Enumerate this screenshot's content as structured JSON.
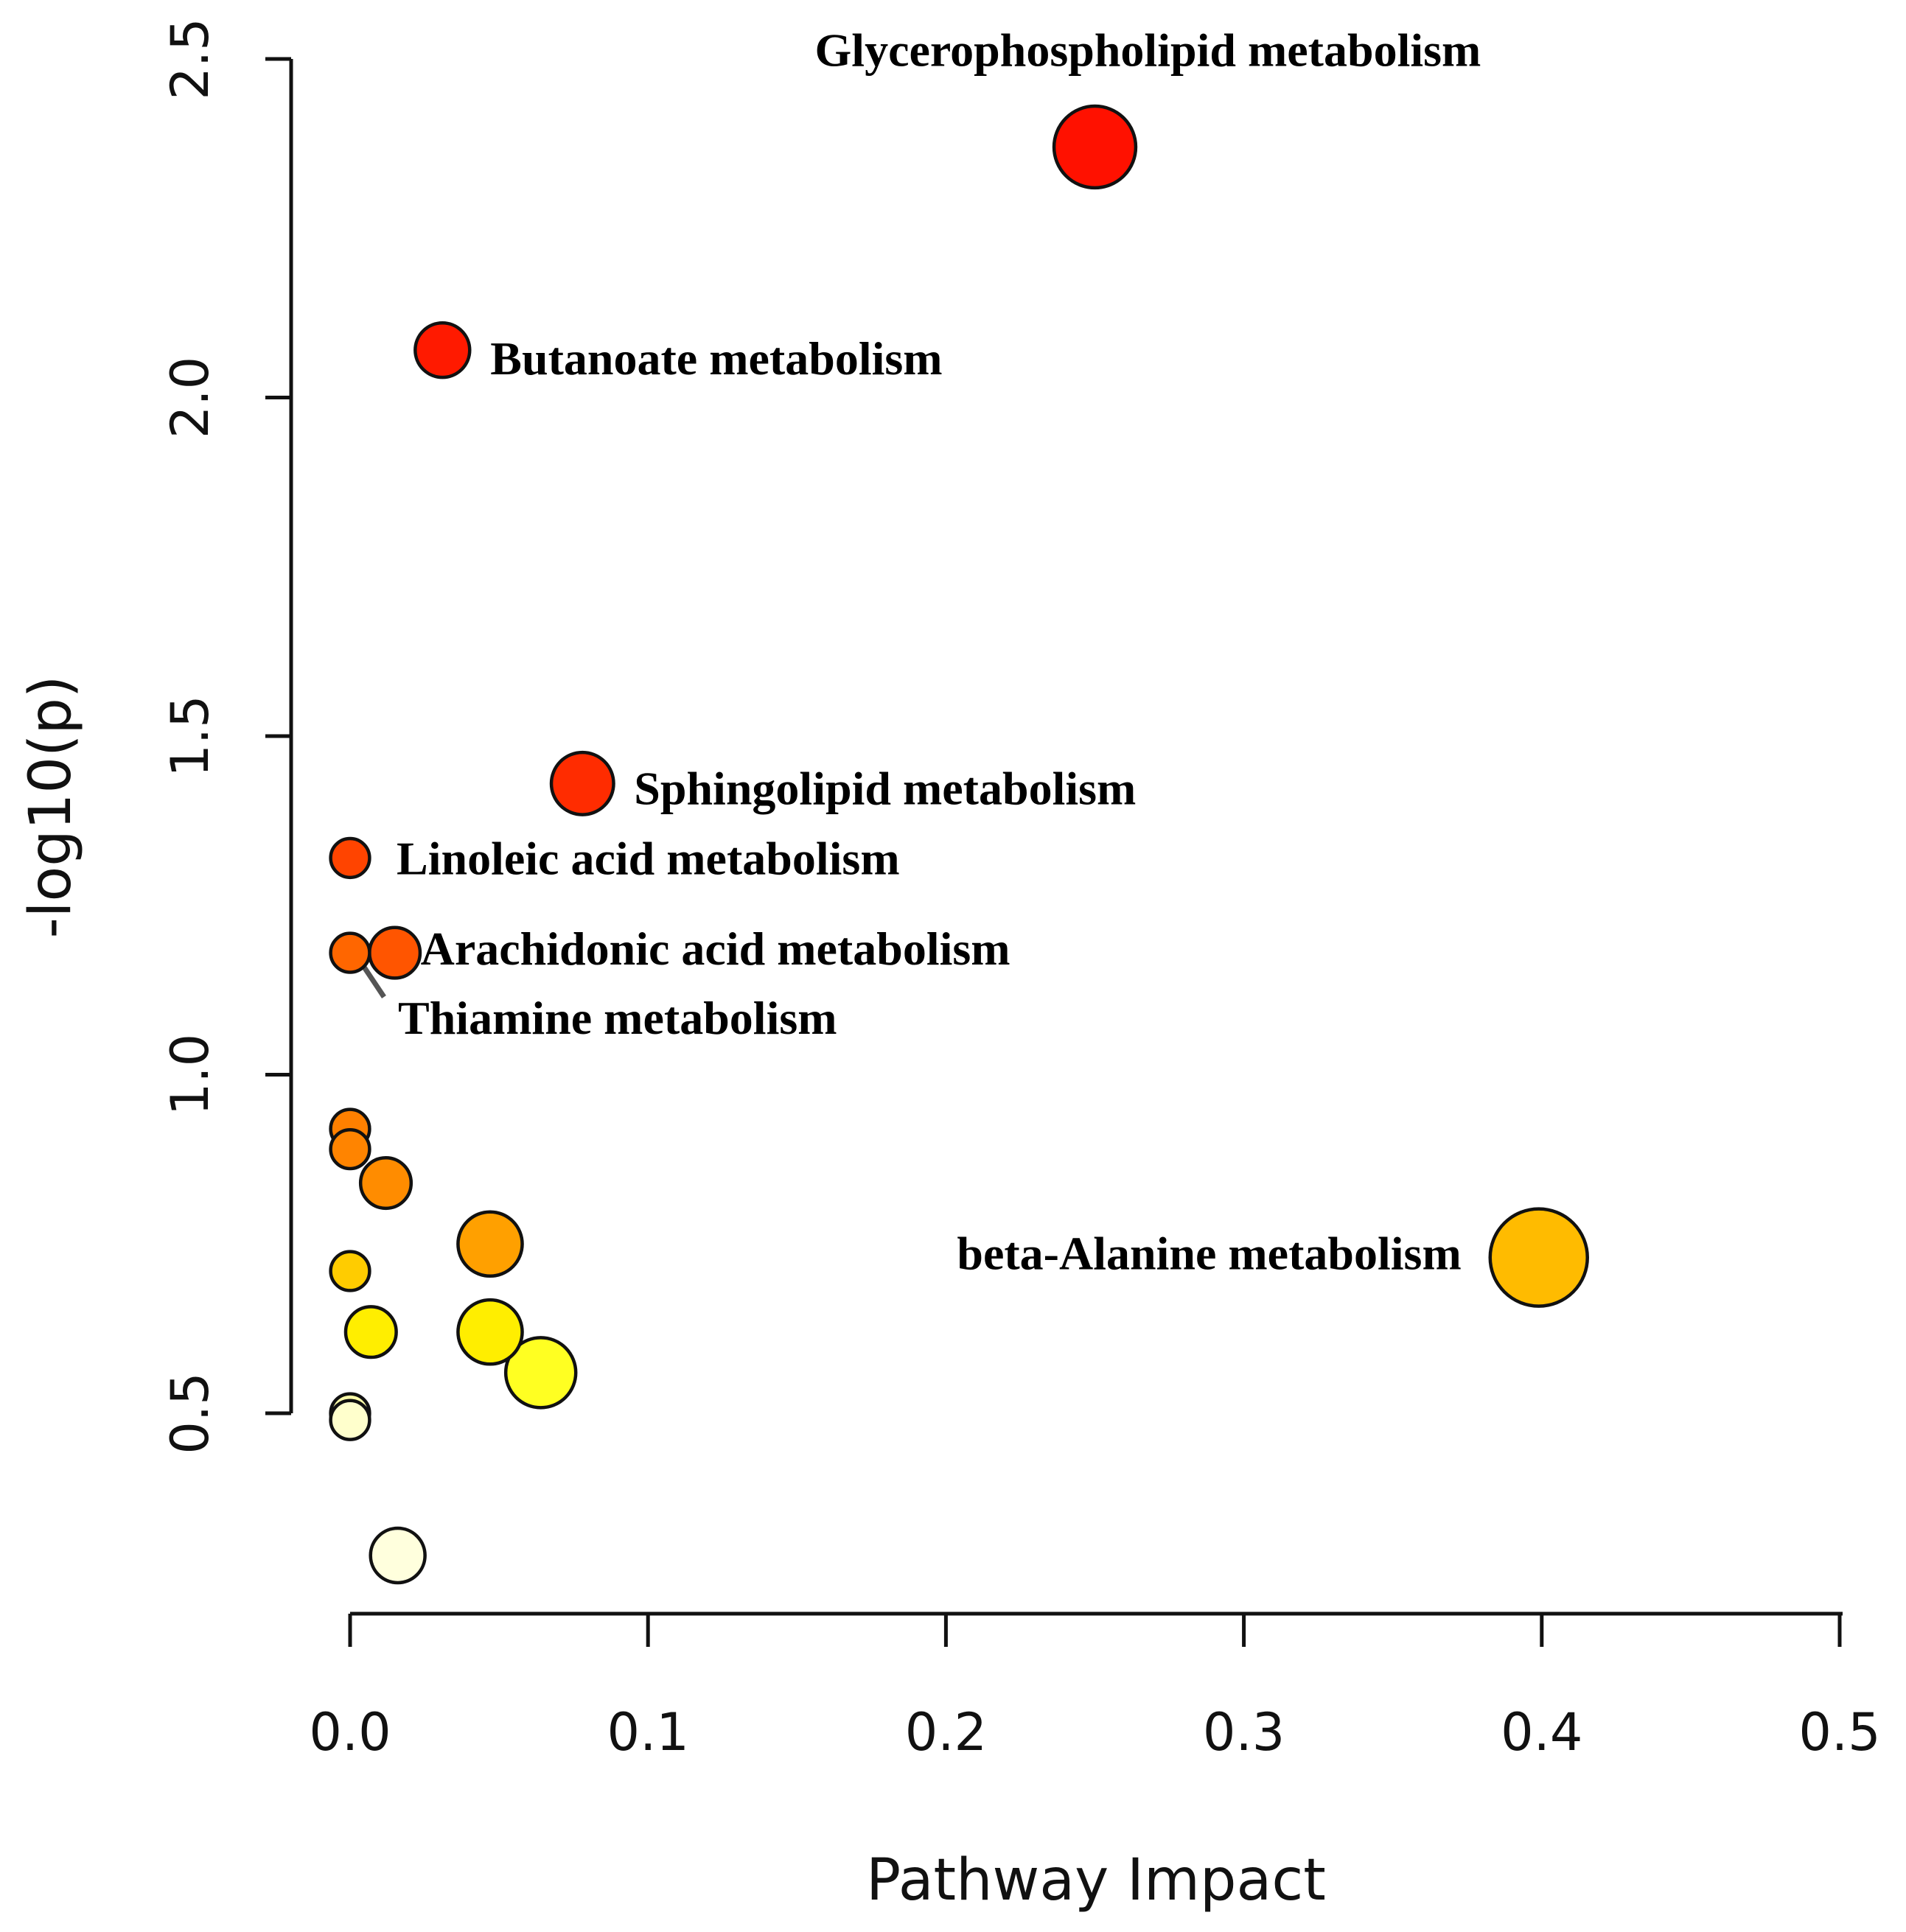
{
  "chart_data": {
    "type": "scatter",
    "title": "",
    "xlabel": "Pathway Impact",
    "ylabel": "-log10(p)",
    "xlim": [
      0.0,
      0.5
    ],
    "ylim": [
      0.5,
      2.5
    ],
    "xticks": [
      "0.0",
      "0.1",
      "0.2",
      "0.3",
      "0.4",
      "0.5"
    ],
    "yticks": [
      "0.5",
      "1.0",
      "1.5",
      "2.0",
      "2.5"
    ],
    "grid": false,
    "points": [
      {
        "name": "Glycerophospholipid metabolism",
        "x": 0.25,
        "y": 2.37,
        "size": 0.42,
        "color": "#ff1100",
        "label": "Glycerophospholipid metabolism"
      },
      {
        "name": "Butanoate metabolism",
        "x": 0.031,
        "y": 2.07,
        "size": 0.28,
        "color": "#ff1a00",
        "label": "Butanoate metabolism"
      },
      {
        "name": "Sphingolipid metabolism",
        "x": 0.078,
        "y": 1.43,
        "size": 0.32,
        "color": "#ff2c00",
        "label": "Sphingolipid metabolism"
      },
      {
        "name": "Linoleic acid metabolism",
        "x": 0.0,
        "y": 1.32,
        "size": 0.2,
        "color": "#ff4400",
        "label": "Linoleic acid metabolism"
      },
      {
        "name": "Arachidonic acid metabolism",
        "x": 0.015,
        "y": 1.18,
        "size": 0.26,
        "color": "#ff5500",
        "label": "Arachidonic acid metabolism"
      },
      {
        "name": "Thiamine metabolism",
        "x": 0.0,
        "y": 1.18,
        "size": 0.2,
        "color": "#ff6600",
        "label": "Thiamine metabolism"
      },
      {
        "name": "pathway-7",
        "x": 0.0,
        "y": 0.92,
        "size": 0.2,
        "color": "#ff8000",
        "label": ""
      },
      {
        "name": "pathway-8",
        "x": 0.0,
        "y": 0.89,
        "size": 0.2,
        "color": "#ff8400",
        "label": ""
      },
      {
        "name": "pathway-9",
        "x": 0.012,
        "y": 0.84,
        "size": 0.26,
        "color": "#ff8c00",
        "label": ""
      },
      {
        "name": "pathway-10",
        "x": 0.047,
        "y": 0.75,
        "size": 0.33,
        "color": "#ffa000",
        "label": ""
      },
      {
        "name": "beta-Alanine metabolism",
        "x": 0.399,
        "y": 0.73,
        "size": 0.5,
        "color": "#ffbb00",
        "label": "beta-Alanine metabolism"
      },
      {
        "name": "pathway-12",
        "x": 0.0,
        "y": 0.71,
        "size": 0.2,
        "color": "#ffcc00",
        "label": ""
      },
      {
        "name": "pathway-13",
        "x": 0.007,
        "y": 0.62,
        "size": 0.26,
        "color": "#ffee00",
        "label": ""
      },
      {
        "name": "pathway-14",
        "x": 0.047,
        "y": 0.62,
        "size": 0.33,
        "color": "#ffee00",
        "label": ""
      },
      {
        "name": "pathway-15",
        "x": 0.064,
        "y": 0.56,
        "size": 0.36,
        "color": "#ffff22",
        "label": ""
      },
      {
        "name": "pathway-16",
        "x": 0.0,
        "y": 0.5,
        "size": 0.2,
        "color": "#ffffaa",
        "label": ""
      },
      {
        "name": "pathway-17",
        "x": 0.0,
        "y": 0.49,
        "size": 0.2,
        "color": "#ffffcc",
        "label": ""
      },
      {
        "name": "pathway-18",
        "x": 0.016,
        "y": 0.29,
        "size": 0.28,
        "color": "#ffffdd",
        "label": ""
      }
    ]
  }
}
